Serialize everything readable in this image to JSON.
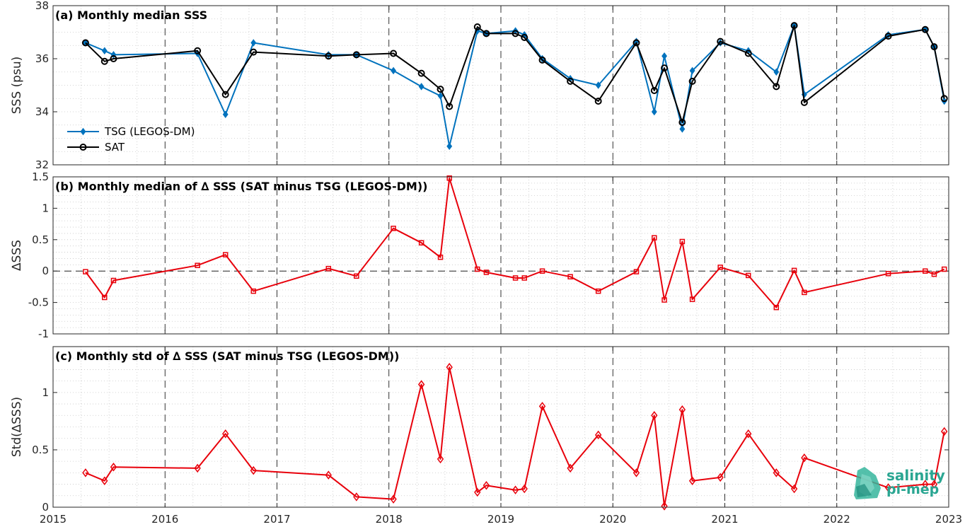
{
  "x_ticks": [
    "2015",
    "2016",
    "2017",
    "2018",
    "2019",
    "2020",
    "2021",
    "2022",
    "2023"
  ],
  "logo": {
    "line1": "salinity",
    "line2": "pi-mep"
  },
  "colors": {
    "tsg": "#0072bd",
    "sat": "#000000",
    "delta": "#e8000b",
    "grid": "#c8c8c8"
  },
  "chart_data": [
    {
      "type": "line",
      "title": "(a) Monthly median SSS",
      "ylabel": "SSS (psu)",
      "xlim": [
        2015,
        2023
      ],
      "ylim": [
        32,
        38
      ],
      "yticks": [
        "32",
        "34",
        "36",
        "38"
      ],
      "ytick_values": [
        32,
        34,
        36,
        38
      ],
      "legend_position": "bottom-left",
      "x": [
        2015.29,
        2015.46,
        2015.54,
        2016.29,
        2016.54,
        2016.79,
        2017.46,
        2017.71,
        2018.04,
        2018.29,
        2018.46,
        2018.54,
        2018.79,
        2018.87,
        2019.13,
        2019.21,
        2019.37,
        2019.62,
        2019.87,
        2020.21,
        2020.37,
        2020.46,
        2020.62,
        2020.71,
        2020.96,
        2021.21,
        2021.46,
        2021.62,
        2021.71,
        2022.46,
        2022.79,
        2022.87,
        2022.96
      ],
      "series": [
        {
          "name": "TSG (LEGOS-DM)",
          "marker": "diamond",
          "values": [
            36.6,
            36.3,
            36.15,
            36.2,
            33.9,
            36.6,
            36.15,
            36.15,
            35.55,
            34.95,
            34.6,
            32.7,
            37.05,
            36.95,
            37.05,
            36.9,
            36.0,
            35.25,
            35.0,
            36.65,
            34.0,
            36.1,
            33.35,
            35.55,
            36.6,
            36.3,
            35.5,
            37.25,
            34.65,
            36.9,
            37.1,
            36.45,
            34.4
          ]
        },
        {
          "name": "SAT",
          "marker": "circle",
          "values": [
            36.6,
            35.9,
            36.0,
            36.3,
            34.65,
            36.25,
            36.1,
            36.15,
            36.2,
            35.45,
            34.85,
            34.2,
            37.2,
            36.95,
            36.95,
            36.8,
            35.95,
            35.15,
            34.4,
            36.6,
            34.8,
            35.65,
            33.6,
            35.15,
            36.65,
            36.2,
            34.95,
            37.25,
            34.35,
            36.85,
            37.1,
            36.45,
            34.5
          ]
        }
      ]
    },
    {
      "type": "line",
      "title": "(b) Monthly median of ∆ SSS (SAT minus TSG (LEGOS-DM))",
      "ylabel": "∆SSS",
      "xlim": [
        2015,
        2023
      ],
      "ylim": [
        -1,
        1.5
      ],
      "yticks": [
        "-1",
        "-0.5",
        "0",
        "0.5",
        "1",
        "1.5"
      ],
      "ytick_values": [
        -1,
        -0.5,
        0,
        0.5,
        1,
        1.5
      ],
      "zero_line": true,
      "x": [
        2015.29,
        2015.46,
        2015.54,
        2016.29,
        2016.54,
        2016.79,
        2017.46,
        2017.71,
        2018.04,
        2018.29,
        2018.46,
        2018.54,
        2018.79,
        2018.87,
        2019.13,
        2019.21,
        2019.37,
        2019.62,
        2019.87,
        2020.21,
        2020.37,
        2020.46,
        2020.62,
        2020.71,
        2020.96,
        2021.21,
        2021.46,
        2021.62,
        2021.71,
        2022.46,
        2022.79,
        2022.87,
        2022.96
      ],
      "series": [
        {
          "marker": "square",
          "values": [
            -0.01,
            -0.42,
            -0.15,
            0.09,
            0.26,
            -0.32,
            0.04,
            -0.08,
            0.68,
            0.45,
            0.22,
            1.48,
            0.03,
            -0.02,
            -0.11,
            -0.11,
            0.0,
            -0.09,
            -0.32,
            -0.01,
            0.53,
            -0.46,
            0.47,
            -0.45,
            0.06,
            -0.07,
            -0.58,
            0.01,
            -0.34,
            -0.04,
            0.0,
            -0.05,
            0.03
          ]
        }
      ]
    },
    {
      "type": "line",
      "title": "(c) Monthly std of ∆ SSS (SAT minus TSG (LEGOS-DM))",
      "ylabel": "Std(∆SSS)",
      "xlim": [
        2015,
        2023
      ],
      "ylim": [
        0,
        1.4
      ],
      "yticks": [
        "0",
        "0.5",
        "1"
      ],
      "ytick_values": [
        0,
        0.5,
        1
      ],
      "x": [
        2015.29,
        2015.46,
        2015.54,
        2016.29,
        2016.54,
        2016.79,
        2017.46,
        2017.71,
        2018.04,
        2018.29,
        2018.46,
        2018.54,
        2018.79,
        2018.87,
        2019.13,
        2019.21,
        2019.37,
        2019.62,
        2019.87,
        2020.21,
        2020.37,
        2020.46,
        2020.62,
        2020.71,
        2020.96,
        2021.21,
        2021.46,
        2021.62,
        2021.71,
        2022.46,
        2022.79,
        2022.87,
        2022.96
      ],
      "series": [
        {
          "marker": "diamond",
          "values": [
            0.3,
            0.23,
            0.35,
            0.34,
            0.64,
            0.32,
            0.28,
            0.09,
            0.07,
            1.07,
            0.42,
            1.22,
            0.13,
            0.19,
            0.15,
            0.16,
            0.88,
            0.34,
            0.63,
            0.3,
            0.8,
            0.01,
            0.85,
            0.23,
            0.26,
            0.64,
            0.3,
            0.16,
            0.43,
            0.17,
            0.2,
            0.2,
            0.66
          ]
        }
      ]
    }
  ]
}
